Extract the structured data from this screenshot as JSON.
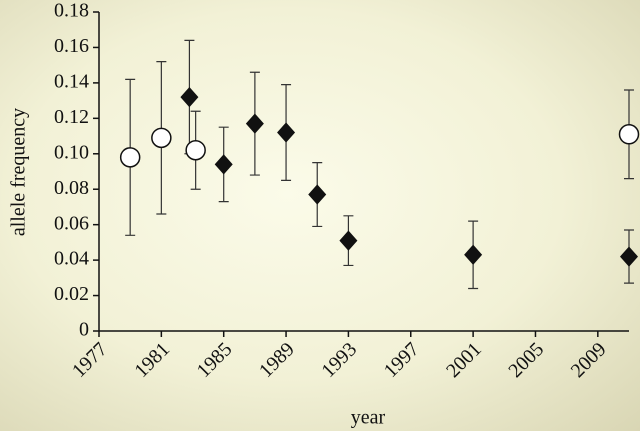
{
  "chart_data": {
    "type": "scatter",
    "xlabel": "year",
    "ylabel": "allele frequency",
    "xlim": [
      1977,
      2011
    ],
    "xticks": [
      1977,
      1981,
      1985,
      1989,
      1993,
      1997,
      2001,
      2005,
      2009
    ],
    "ylim": [
      0,
      0.18
    ],
    "yticks": [
      0,
      0.02,
      0.04,
      0.06,
      0.08,
      {
        "value": 0.1,
        "label": "0.10"
      },
      0.12,
      0.14,
      0.16,
      0.18
    ],
    "series": [
      {
        "marker": "circle",
        "color": "#ffffff",
        "x": [
          1979,
          1981,
          1983.2,
          2011
        ],
        "values": [
          0.098,
          0.109,
          0.102,
          0.111
        ],
        "errors": [
          0.044,
          0.043,
          0.022,
          0.025
        ]
      },
      {
        "marker": "diamond",
        "color": "#111111",
        "x": [
          1982.8,
          1985,
          1987,
          1989,
          1991,
          1993,
          2001,
          2011
        ],
        "values": [
          0.132,
          0.094,
          0.117,
          0.112,
          0.077,
          0.051,
          0.043,
          0.042
        ],
        "errors": [
          0.032,
          0.021,
          0.029,
          0.027,
          0.018,
          0.014,
          0.019,
          0.015
        ]
      }
    ]
  }
}
